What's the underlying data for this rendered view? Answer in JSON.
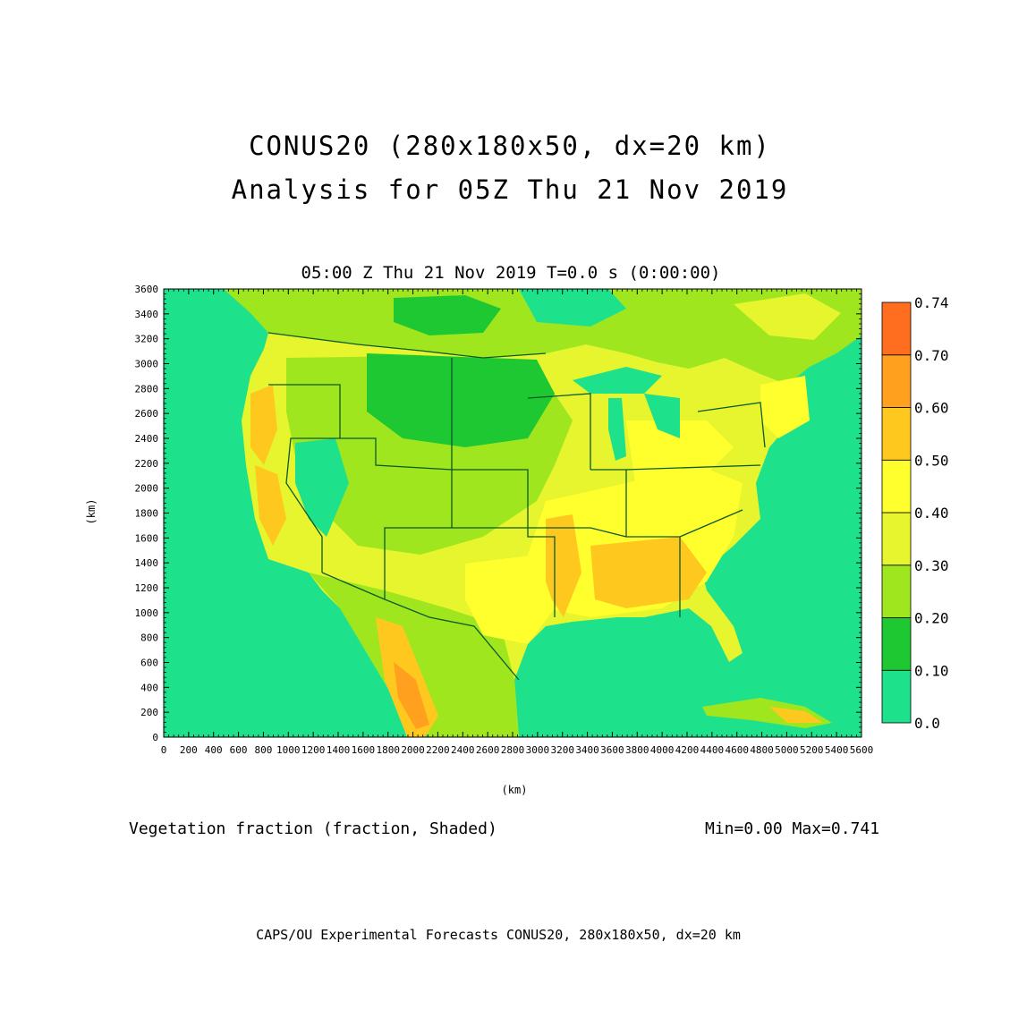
{
  "header": {
    "title_line1": "CONUS20 (280x180x50, dx=20 km)",
    "title_line2": "Analysis for 05Z Thu 21 Nov 2019",
    "time_label": "05:00 Z Thu 21 Nov 2019    T=0.0 s (0:00:00)"
  },
  "plot": {
    "x_axis_label": "(km)",
    "y_axis_label": "(km)",
    "x_ticks": [
      "0",
      "200",
      "400",
      "600",
      "800",
      "1000",
      "1200",
      "1400",
      "1600",
      "1800",
      "2000",
      "2200",
      "2400",
      "2600",
      "2800",
      "3000",
      "3200",
      "3400",
      "3600",
      "3800",
      "4000",
      "4200",
      "4400",
      "4600",
      "4800",
      "5000",
      "5200",
      "5400",
      "5600"
    ],
    "y_ticks": [
      "0",
      "200",
      "400",
      "600",
      "800",
      "1000",
      "1200",
      "1400",
      "1600",
      "1800",
      "2000",
      "2200",
      "2400",
      "2600",
      "2800",
      "3000",
      "3200",
      "3400",
      "3600"
    ],
    "x_range": [
      0,
      5600
    ],
    "y_range": [
      0,
      3600
    ],
    "background_color": "#1ee18c"
  },
  "colorbar": {
    "levels": [
      "0.0",
      "0.10",
      "0.20",
      "0.30",
      "0.40",
      "0.50",
      "0.60",
      "0.70",
      "0.74"
    ],
    "colors": [
      "#1ee18c",
      "#1ec832",
      "#a0e61e",
      "#e6f52d",
      "#ffff2d",
      "#ffc81e",
      "#ffa01e",
      "#ff6e1e"
    ]
  },
  "footer": {
    "variable_label": "Vegetation fraction (fraction, Shaded)",
    "min_max": "Min=0.00 Max=0.741",
    "credit": "CAPS/OU Experimental Forecasts  CONUS20, 280x180x50, dx=20 km"
  }
}
